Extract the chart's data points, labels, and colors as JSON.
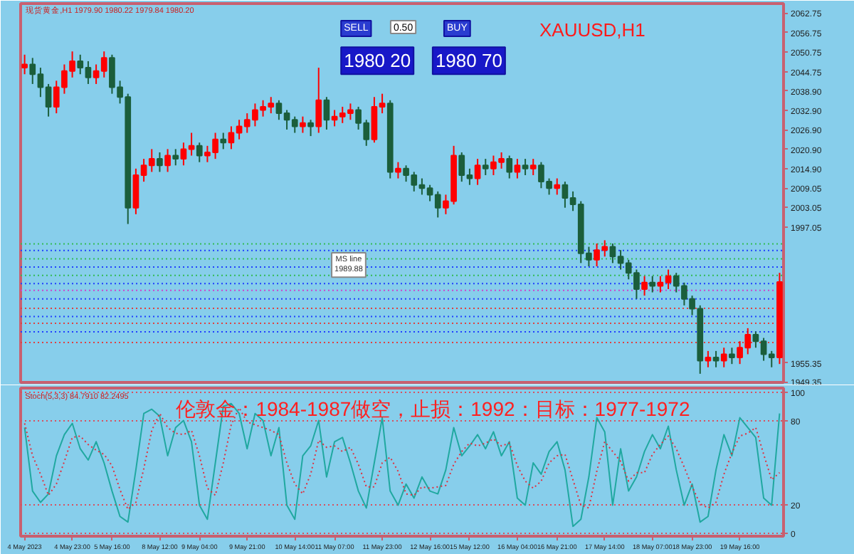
{
  "chart_data": [
    {
      "type": "candlestick",
      "title": "XAUUSD,H1",
      "tick_labels": "y",
      "grid": false,
      "ylim": [
        1949.35,
        2065.7
      ],
      "yticks": [
        2062.75,
        2056.75,
        2050.75,
        2044.75,
        {
          "value": 2038.9,
          "label": "2038.90"
        },
        {
          "value": 2032.9,
          "label": "2032.90"
        },
        {
          "value": 2026.9,
          "label": "2026.90"
        },
        {
          "value": 2020.9,
          "label": "2020.90"
        },
        {
          "value": 2014.9,
          "label": "2014.90"
        },
        2009.05,
        2003.05,
        1997.05,
        1955.35,
        1949.35
      ],
      "categories": [
        null,
        null,
        null,
        null,
        null,
        null,
        null,
        null,
        null,
        null,
        null,
        null,
        null,
        null,
        null,
        null,
        null,
        null,
        null,
        null,
        null,
        null,
        null,
        null,
        null,
        null,
        null,
        null,
        null,
        null,
        null,
        null,
        null,
        null,
        null,
        null,
        null,
        null,
        null,
        null,
        null,
        null,
        null,
        null,
        null,
        null,
        null,
        null,
        null,
        null,
        null,
        null,
        null,
        null,
        null,
        null,
        null,
        null,
        null,
        null,
        null,
        null,
        null,
        null,
        null,
        null,
        null,
        null,
        null,
        null,
        null,
        null,
        null,
        null,
        null,
        null,
        null,
        null,
        null,
        null,
        null,
        null,
        null,
        null,
        null,
        null,
        null,
        null,
        null,
        null,
        null,
        null,
        null,
        null,
        null,
        null
      ],
      "ohlc": [
        [
          2046,
          2050,
          2044,
          2047
        ],
        [
          2047,
          2049,
          2041,
          2044
        ],
        [
          2044,
          2046,
          2037,
          2040
        ],
        [
          2040,
          2041,
          2031,
          2034
        ],
        [
          2034,
          2042,
          2032,
          2040
        ],
        [
          2040,
          2047,
          2038,
          2045
        ],
        [
          2045,
          2051,
          2043,
          2048
        ],
        [
          2048,
          2050,
          2044,
          2046
        ],
        [
          2046,
          2048,
          2041,
          2043
        ],
        [
          2043,
          2047,
          2041,
          2045
        ],
        [
          2045,
          2051,
          2043,
          2049
        ],
        [
          2049,
          2050,
          2038,
          2040
        ],
        [
          2040,
          2042,
          2035,
          2037
        ],
        [
          2037,
          2038,
          1998,
          2003
        ],
        [
          2003,
          2015,
          2001,
          2013
        ],
        [
          2013,
          2018,
          2011,
          2016
        ],
        [
          2016,
          2021,
          2014,
          2018
        ],
        [
          2018,
          2020,
          2014,
          2016
        ],
        [
          2016,
          2021,
          2014,
          2019
        ],
        [
          2019,
          2021,
          2016,
          2018
        ],
        [
          2018,
          2023,
          2016,
          2021
        ],
        [
          2021,
          2026,
          2019,
          2022
        ],
        [
          2022,
          2023,
          2017,
          2019
        ],
        [
          2019,
          2022,
          2017,
          2020
        ],
        [
          2020,
          2026,
          2018,
          2024
        ],
        [
          2024,
          2026,
          2021,
          2023
        ],
        [
          2023,
          2028,
          2021,
          2026
        ],
        [
          2026,
          2030,
          2024,
          2028
        ],
        [
          2028,
          2032,
          2026,
          2030
        ],
        [
          2030,
          2035,
          2028,
          2033
        ],
        [
          2033,
          2036,
          2031,
          2034
        ],
        [
          2034,
          2037,
          2032,
          2035
        ],
        [
          2035,
          2036,
          2030,
          2032
        ],
        [
          2032,
          2033,
          2027,
          2030
        ],
        [
          2030,
          2031,
          2026,
          2028
        ],
        [
          2028,
          2031,
          2026,
          2029
        ],
        [
          2029,
          2030,
          2025,
          2028
        ],
        [
          2028,
          2046,
          2026,
          2036
        ],
        [
          2036,
          2037,
          2027,
          2030
        ],
        [
          2030,
          2033,
          2028,
          2031
        ],
        [
          2031,
          2034,
          2029,
          2032
        ],
        [
          2032,
          2035,
          2030,
          2033
        ],
        [
          2033,
          2034,
          2027,
          2029
        ],
        [
          2029,
          2030,
          2022,
          2024
        ],
        [
          2024,
          2037,
          2023,
          2034
        ],
        [
          2034,
          2038,
          2032,
          2035
        ],
        [
          2035,
          2036,
          2012,
          2014
        ],
        [
          2014,
          2017,
          2012,
          2015
        ],
        [
          2015,
          2016,
          2011,
          2013
        ],
        [
          2013,
          2014,
          2008,
          2010
        ],
        [
          2010,
          2012,
          2007,
          2009
        ],
        [
          2009,
          2010,
          2005,
          2007
        ],
        [
          2007,
          2008,
          2000,
          2003
        ],
        [
          2003,
          2007,
          2001,
          2005
        ],
        [
          2005,
          2022,
          2004,
          2019
        ],
        [
          2019,
          2020,
          2011,
          2013
        ],
        [
          2013,
          2015,
          2010,
          2012
        ],
        [
          2012,
          2018,
          2010,
          2016
        ],
        [
          2016,
          2018,
          2013,
          2015
        ],
        [
          2015,
          2019,
          2013,
          2017
        ],
        [
          2017,
          2020,
          2015,
          2018
        ],
        [
          2018,
          2019,
          2012,
          2014
        ],
        [
          2014,
          2018,
          2012,
          2016
        ],
        [
          2016,
          2018,
          2013,
          2015
        ],
        [
          2015,
          2018,
          2013,
          2016
        ],
        [
          2016,
          2017,
          2009,
          2011
        ],
        [
          2011,
          2012,
          2007,
          2009
        ],
        [
          2009,
          2012,
          2007,
          2010
        ],
        [
          2010,
          2011,
          2003,
          2006
        ],
        [
          2006,
          2008,
          2002,
          2004
        ],
        [
          2004,
          2005,
          1986,
          1989
        ],
        [
          1989,
          1991,
          1985,
          1987
        ],
        [
          1987,
          1992,
          1985,
          1990
        ],
        [
          1990,
          1993,
          1988,
          1991
        ],
        [
          1991,
          1992,
          1986,
          1988
        ],
        [
          1988,
          1990,
          1984,
          1986
        ],
        [
          1986,
          1987,
          1981,
          1983
        ],
        [
          1983,
          1984,
          1975,
          1978
        ],
        [
          1978,
          1982,
          1976,
          1980
        ],
        [
          1980,
          1982,
          1977,
          1979
        ],
        [
          1979,
          1982,
          1977,
          1980
        ],
        [
          1980,
          1984,
          1978,
          1982
        ],
        [
          1982,
          1983,
          1977,
          1979
        ],
        [
          1979,
          1980,
          1973,
          1975
        ],
        [
          1975,
          1976,
          1970,
          1972
        ],
        [
          1972,
          1973,
          1952,
          1956
        ],
        [
          1956,
          1959,
          1954,
          1957
        ],
        [
          1957,
          1959,
          1954,
          1956
        ],
        [
          1956,
          1960,
          1954,
          1958
        ],
        [
          1958,
          1960,
          1955,
          1957
        ],
        [
          1957,
          1962,
          1955,
          1960
        ],
        [
          1960,
          1966,
          1958,
          1964
        ],
        [
          1964,
          1965,
          1960,
          1962
        ],
        [
          1962,
          1963,
          1956,
          1958
        ],
        [
          1958,
          1959,
          1954,
          1957
        ],
        [
          1957,
          1983,
          1955,
          1980.2
        ]
      ],
      "colors": [
        "#ff0000",
        "#1b5e3b",
        "#1b5e3b",
        "#1b5e3b",
        "#ff0000",
        "#ff0000",
        "#ff0000",
        "#1b5e3b",
        "#1b5e3b",
        "#ff0000",
        "#ff0000",
        "#1b5e3b",
        "#1b5e3b",
        "#1b5e3b",
        "#ff0000",
        "#ff0000",
        "#ff0000",
        "#1b5e3b",
        "#ff0000",
        "#1b5e3b",
        "#ff0000",
        "#ff0000",
        "#1b5e3b",
        "#ff0000",
        "#ff0000",
        "#1b5e3b",
        "#ff0000",
        "#ff0000",
        "#ff0000",
        "#ff0000",
        "#ff0000",
        "#ff0000",
        "#1b5e3b",
        "#1b5e3b",
        "#1b5e3b",
        "#ff0000",
        "#1b5e3b",
        "#ff0000",
        "#1b5e3b",
        "#ff0000",
        "#ff0000",
        "#ff0000",
        "#1b5e3b",
        "#1b5e3b",
        "#ff0000",
        "#ff0000",
        "#1b5e3b",
        "#ff0000",
        "#1b5e3b",
        "#1b5e3b",
        "#1b5e3b",
        "#1b5e3b",
        "#1b5e3b",
        "#ff0000",
        "#ff0000",
        "#1b5e3b",
        "#1b5e3b",
        "#ff0000",
        "#1b5e3b",
        "#ff0000",
        "#ff0000",
        "#1b5e3b",
        "#ff0000",
        "#1b5e3b",
        "#ff0000",
        "#1b5e3b",
        "#1b5e3b",
        "#ff0000",
        "#1b5e3b",
        "#1b5e3b",
        "#1b5e3b",
        "#1b5e3b",
        "#ff0000",
        "#ff0000",
        "#1b5e3b",
        "#1b5e3b",
        "#1b5e3b",
        "#1b5e3b",
        "#ff0000",
        "#1b5e3b",
        "#ff0000",
        "#ff0000",
        "#1b5e3b",
        "#1b5e3b",
        "#1b5e3b",
        "#1b5e3b",
        "#ff0000",
        "#1b5e3b",
        "#ff0000",
        "#1b5e3b",
        "#ff0000",
        "#ff0000",
        "#1b5e3b",
        "#1b5e3b",
        "#1b5e3b",
        "#ff0000"
      ],
      "ref_lines": [
        {
          "axis": "y",
          "value": 1991.9,
          "color": "#33bb55",
          "line_style": "dotted"
        },
        {
          "axis": "y",
          "value": 1989.88,
          "color": "#2040ff",
          "line_style": "dotted"
        },
        {
          "axis": "y",
          "value": 1987.3,
          "color": "#33bb55",
          "line_style": "dotted"
        },
        {
          "axis": "y",
          "value": 1984.8,
          "color": "#2040ff",
          "line_style": "dotted"
        },
        {
          "axis": "y",
          "value": 1982.2,
          "color": "#33bb55",
          "line_style": "dotted"
        },
        {
          "axis": "y",
          "value": 1979.7,
          "color": "#2040ff",
          "line_style": "dotted"
        },
        {
          "axis": "y",
          "value": 1977.6,
          "color": "#cc44cc",
          "line_style": "dotted"
        },
        {
          "axis": "y",
          "value": 1975.0,
          "color": "#2040ff",
          "line_style": "dotted"
        },
        {
          "axis": "y",
          "value": 1972.1,
          "color": "#e04040",
          "line_style": "dotted"
        },
        {
          "axis": "y",
          "value": 1969.6,
          "color": "#2040ff",
          "line_style": "dotted"
        },
        {
          "axis": "y",
          "value": 1967.5,
          "color": "#e04040",
          "line_style": "dotted"
        },
        {
          "axis": "y",
          "value": 1964.9,
          "color": "#2040ff",
          "line_style": "dotted"
        },
        {
          "axis": "y",
          "value": 1961.6,
          "color": "#e04040",
          "line_style": "dotted"
        }
      ],
      "annotations": [
        "现货黄金,H1  1979.90 1980.22 1979.84 1980.20",
        "SELL",
        "0.50",
        "BUY",
        "1980 20",
        "1980 70",
        "MS line\n1989.88"
      ]
    },
    {
      "type": "line",
      "grid": "y",
      "ylim": [
        -2,
        103
      ],
      "yticks": [
        0,
        20,
        80,
        100
      ],
      "categories": [
        "4 May 2023",
        null,
        null,
        null,
        null,
        null,
        "4 May 23:00",
        null,
        null,
        null,
        null,
        "5 May 16:00",
        null,
        null,
        null,
        null,
        null,
        "8 May 12:00",
        null,
        null,
        null,
        null,
        "9 May 04:00",
        null,
        null,
        null,
        null,
        null,
        "9 May 21:00",
        null,
        null,
        null,
        null,
        null,
        "10 May 14:00",
        null,
        null,
        null,
        null,
        "11 May 07:00",
        null,
        null,
        null,
        null,
        null,
        "11 May 23:00",
        null,
        null,
        null,
        null,
        null,
        "12 May 16:00",
        null,
        null,
        null,
        null,
        "15 May 12:00",
        null,
        null,
        null,
        null,
        null,
        "16 May 04:00",
        null,
        null,
        null,
        null,
        "16 May 21:00",
        null,
        null,
        null,
        null,
        null,
        "17 May 14:00",
        null,
        null,
        null,
        null,
        null,
        "18 May 07:00",
        null,
        null,
        null,
        null,
        "18 May 23:00",
        null,
        null,
        null,
        null,
        null,
        "19 May 16:00",
        null,
        null,
        null,
        null,
        null
      ],
      "series": [
        {
          "color": "#20a8a0",
          "line_style": "solid",
          "values": [
            75,
            30,
            22,
            28,
            55,
            70,
            78,
            60,
            52,
            65,
            50,
            30,
            12,
            8,
            45,
            85,
            88,
            83,
            55,
            75,
            80,
            65,
            20,
            10,
            50,
            90,
            92,
            85,
            60,
            85,
            80,
            55,
            75,
            20,
            10,
            55,
            62,
            80,
            40,
            65,
            68,
            50,
            30,
            18,
            50,
            82,
            30,
            20,
            35,
            25,
            40,
            30,
            28,
            45,
            75,
            55,
            62,
            70,
            60,
            72,
            55,
            65,
            25,
            20,
            50,
            42,
            58,
            65,
            45,
            5,
            10,
            40,
            82,
            72,
            20,
            60,
            30,
            40,
            58,
            70,
            60,
            76,
            45,
            20,
            35,
            8,
            12,
            45,
            70,
            55,
            82,
            75,
            68,
            25,
            20,
            85
          ]
        },
        {
          "color": "#e03040",
          "line_style": "dotted",
          "values": [
            78,
            55,
            42,
            27,
            35,
            51,
            68,
            69,
            63,
            59,
            56,
            48,
            31,
            17,
            22,
            46,
            73,
            85,
            75,
            71,
            70,
            73,
            55,
            32,
            27,
            50,
            77,
            89,
            79,
            77,
            75,
            73,
            70,
            50,
            35,
            28,
            42,
            66,
            61,
            62,
            58,
            61,
            49,
            33,
            33,
            50,
            54,
            44,
            28,
            27,
            33,
            32,
            33,
            34,
            49,
            58,
            64,
            62,
            64,
            67,
            62,
            64,
            48,
            37,
            32,
            37,
            50,
            55,
            56,
            38,
            20,
            18,
            44,
            65,
            58,
            51,
            37,
            43,
            43,
            56,
            63,
            69,
            60,
            47,
            33,
            21,
            18,
            22,
            42,
            57,
            69,
            71,
            75,
            56,
            38,
            43
          ]
        }
      ],
      "annotations": [
        "Stoch(5,3,3) 84.7910 82.2495",
        "伦敦金：1984-1987做空，止损：1992：目标：1977-1972"
      ]
    }
  ]
}
